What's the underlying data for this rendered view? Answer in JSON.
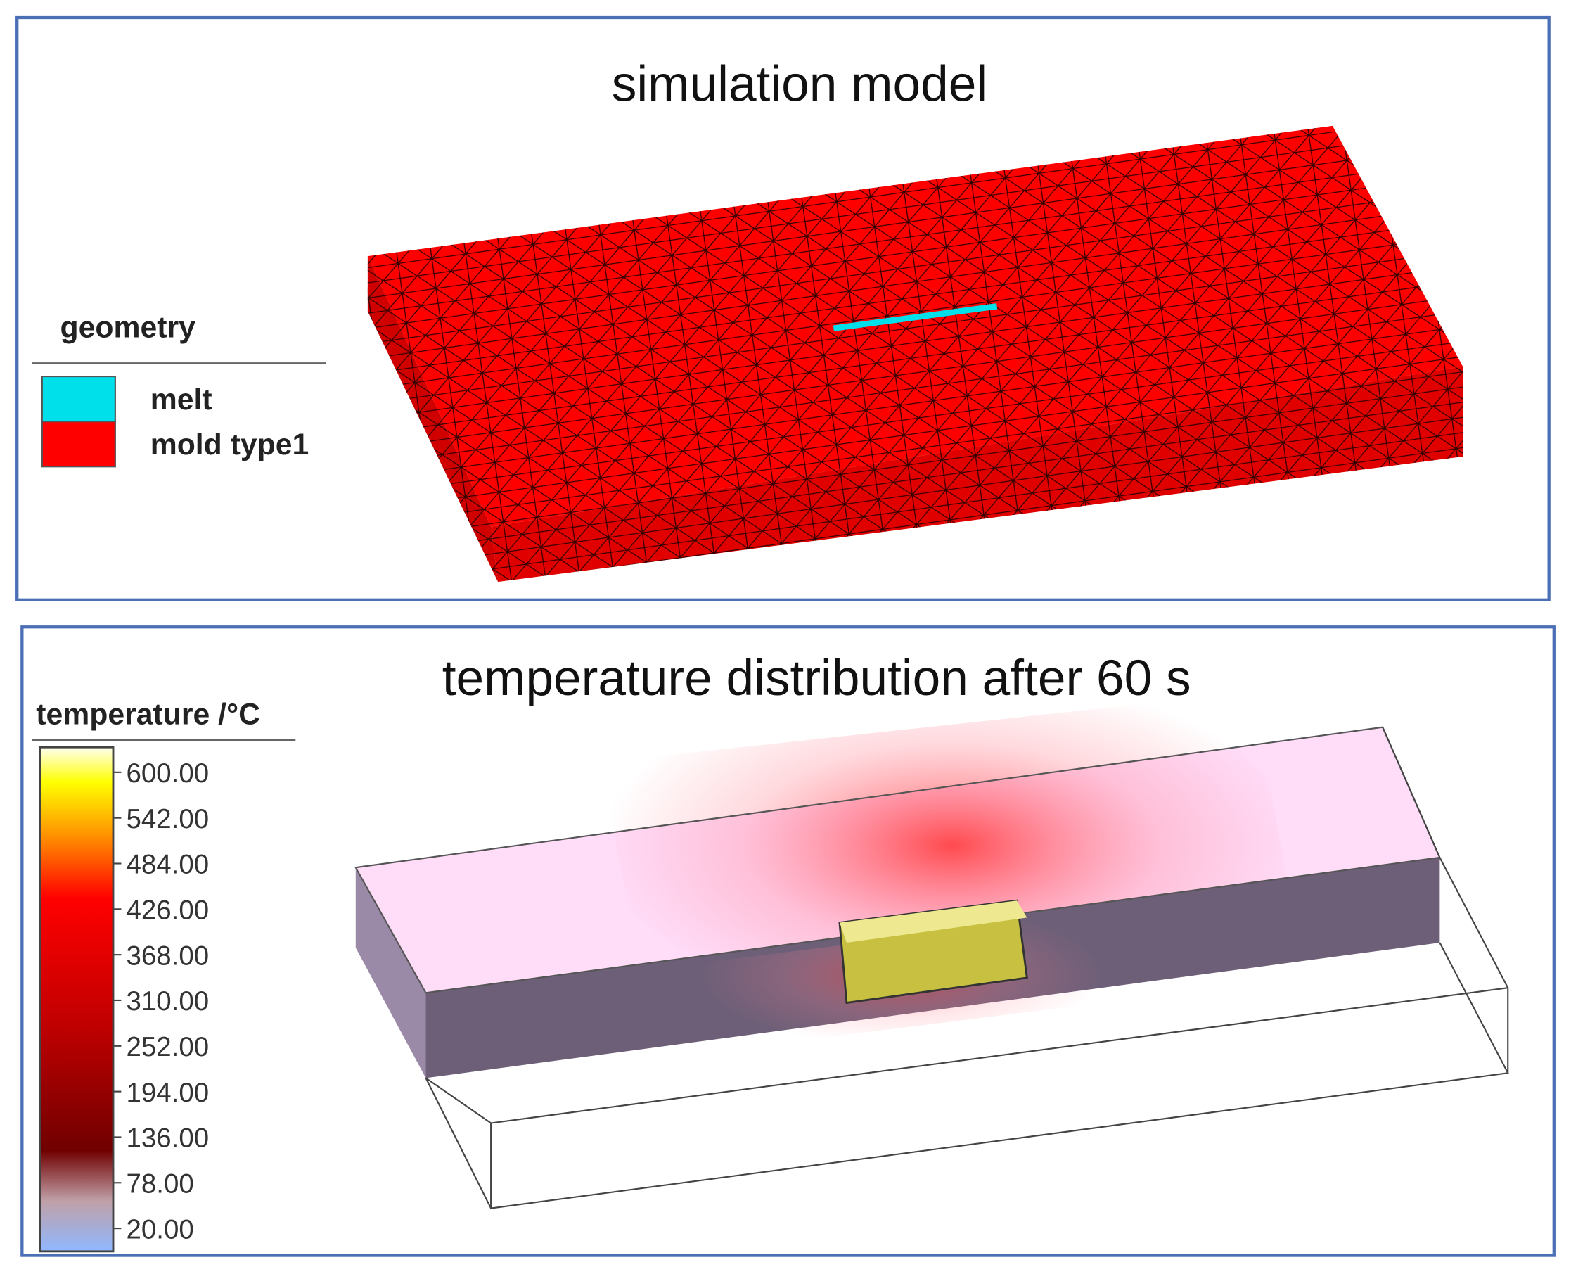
{
  "panels": [
    {
      "title": "simulation model",
      "legend": {
        "title": "geometry",
        "items": [
          {
            "label": "melt",
            "color": "#00e0ea"
          },
          {
            "label": "mold type1",
            "color": "#ff0000"
          }
        ]
      }
    },
    {
      "title": "temperature distribution after 60 s",
      "colorbar": {
        "title": "temperature /°C",
        "ticks": [
          "600.00",
          "542.00",
          "484.00",
          "426.00",
          "368.00",
          "310.00",
          "252.00",
          "194.00",
          "136.00",
          "78.00",
          "20.00"
        ]
      }
    }
  ]
}
